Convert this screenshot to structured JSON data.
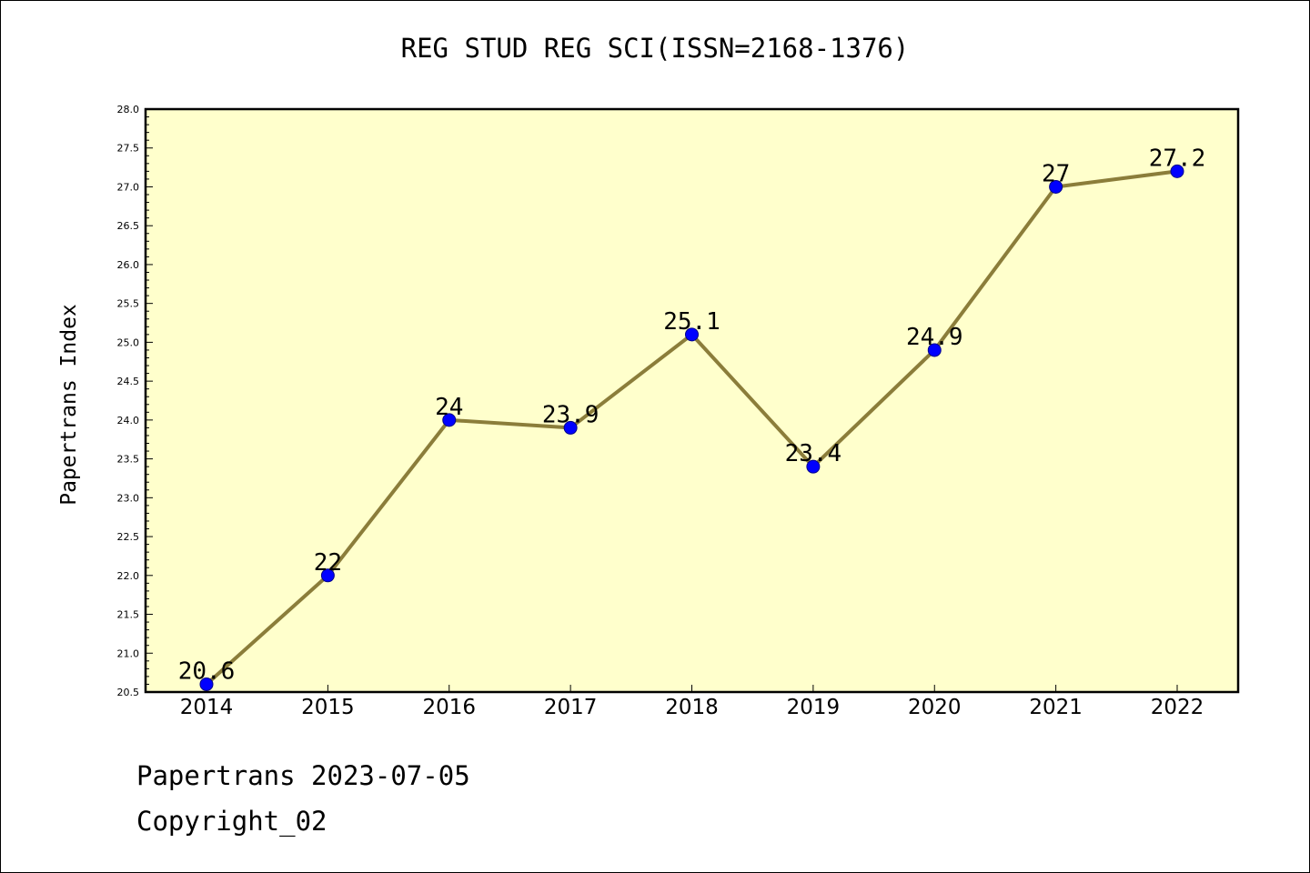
{
  "chart_data": {
    "type": "line",
    "title": "REG STUD REG SCI(ISSN=2168-1376)",
    "xlabel": "",
    "ylabel": "Papertrans Index",
    "categories": [
      "2014",
      "2015",
      "2016",
      "2017",
      "2018",
      "2019",
      "2020",
      "2021",
      "2022"
    ],
    "values": [
      20.6,
      22,
      24,
      23.9,
      25.1,
      23.4,
      24.9,
      27,
      27.2
    ],
    "data_labels": [
      "20.6",
      "22",
      "24",
      "23.9",
      "25.1",
      "23.4",
      "24.9",
      "27",
      "27.2"
    ],
    "ylim": [
      20.5,
      28.0
    ],
    "yticks": [
      "20.5",
      "21.0",
      "21.5",
      "22.0",
      "22.5",
      "23.0",
      "23.5",
      "24.0",
      "24.5",
      "25.0",
      "25.5",
      "26.0",
      "26.5",
      "27.0",
      "27.5",
      "28.0"
    ],
    "grid": false,
    "colors": {
      "plot_background": "#ffffcc",
      "line": "#8b7d3a",
      "marker": "#0000ff"
    }
  },
  "footer": {
    "line1": "Papertrans 2023-07-05",
    "line2": "Copyright_02"
  }
}
